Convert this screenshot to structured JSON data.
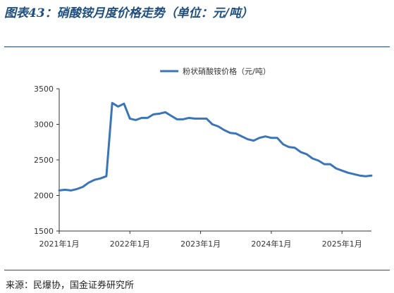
{
  "figure": {
    "title": "图表43：硝酸铵月度价格走势（单位：元/吨）",
    "source": "来源：民爆协，国金证券研究所"
  },
  "colors": {
    "line": "#3a75b8",
    "accent": "#1d4e7f",
    "axis": "#333333"
  },
  "chart_data": {
    "type": "line",
    "title": "",
    "xlabel": "",
    "ylabel": "",
    "legend_position": "top-center",
    "grid": false,
    "ylim": [
      1500,
      3500
    ],
    "yticks": [
      1500,
      2000,
      2500,
      3000,
      3500
    ],
    "xticks": [
      {
        "x": "2021-01",
        "label": "2021年1月"
      },
      {
        "x": "2022-01",
        "label": "2022年1月"
      },
      {
        "x": "2023-01",
        "label": "2023年1月"
      },
      {
        "x": "2024-01",
        "label": "2024年1月"
      },
      {
        "x": "2025-01",
        "label": "2025年1月"
      }
    ],
    "series": [
      {
        "name": "粉状硝酸铵价格（元/吨）",
        "x": [
          "2021-01",
          "2021-02",
          "2021-03",
          "2021-04",
          "2021-05",
          "2021-06",
          "2021-07",
          "2021-08",
          "2021-09",
          "2021-10",
          "2021-11",
          "2021-12",
          "2022-01",
          "2022-02",
          "2022-03",
          "2022-04",
          "2022-05",
          "2022-06",
          "2022-07",
          "2022-08",
          "2022-09",
          "2022-10",
          "2022-11",
          "2022-12",
          "2023-01",
          "2023-02",
          "2023-03",
          "2023-04",
          "2023-05",
          "2023-06",
          "2023-07",
          "2023-08",
          "2023-09",
          "2023-10",
          "2023-11",
          "2023-12",
          "2024-01",
          "2024-02",
          "2024-03",
          "2024-04",
          "2024-05",
          "2024-06",
          "2024-07",
          "2024-08",
          "2024-09",
          "2024-10",
          "2024-11",
          "2024-12",
          "2025-01",
          "2025-02",
          "2025-03",
          "2025-04",
          "2025-05",
          "2025-06"
        ],
        "y": [
          2070,
          2080,
          2070,
          2090,
          2120,
          2180,
          2220,
          2240,
          2270,
          3300,
          3250,
          3290,
          3080,
          3060,
          3090,
          3090,
          3140,
          3150,
          3170,
          3120,
          3070,
          3070,
          3090,
          3080,
          3080,
          3080,
          3000,
          2970,
          2920,
          2880,
          2870,
          2830,
          2790,
          2770,
          2810,
          2830,
          2810,
          2810,
          2720,
          2680,
          2670,
          2610,
          2580,
          2520,
          2490,
          2440,
          2440,
          2380,
          2350,
          2320,
          2300,
          2280,
          2270,
          2280
        ]
      }
    ]
  }
}
